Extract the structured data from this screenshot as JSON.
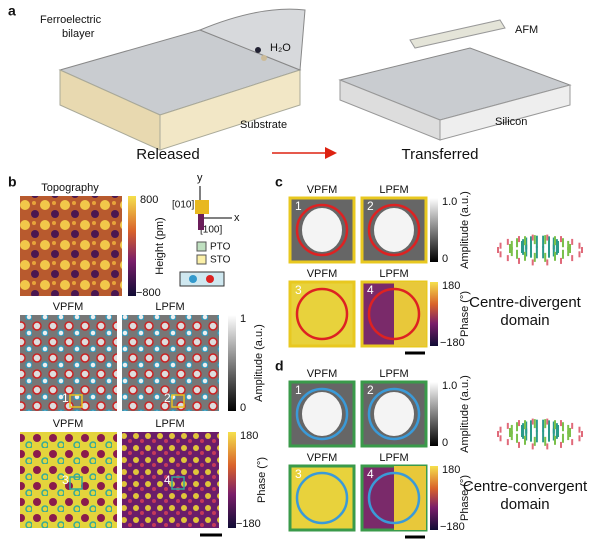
{
  "panel_a": {
    "label": "a",
    "film_label": [
      "Ferroelectric",
      "bilayer"
    ],
    "water": "H₂O",
    "afm": "AFM",
    "substrate": "Substrate",
    "silicon": "Silicon",
    "released": "Released",
    "transferred": "Transferred"
  },
  "panel_b": {
    "label": "b",
    "topography": "Topography",
    "height_ticks": [
      "800",
      "−800"
    ],
    "height_axis": "Height (pm)",
    "axis_y": "y",
    "axis_x": "x",
    "dir_y": "[010]",
    "dir_x": "[100]",
    "legend": [
      "PTO",
      "STO"
    ],
    "map_titles": [
      "VPFM",
      "LPFM",
      "VPFM",
      "LPFM"
    ],
    "amp_ticks": [
      "1",
      "0"
    ],
    "amp_axis": "Amplitude (a.u.)",
    "phase_ticks": [
      "180",
      "−180"
    ],
    "phase_axis": "Phase (°)",
    "markers": [
      "1",
      "2",
      "3",
      "4"
    ]
  },
  "panel_c": {
    "label": "c",
    "titles": [
      "VPFM",
      "LPFM",
      "VPFM",
      "LPFM"
    ],
    "numbers": [
      "1",
      "2",
      "3",
      "4"
    ],
    "amp_ticks": [
      "1.0",
      "0"
    ],
    "amp_axis": "Amplitude (a.u.)",
    "phase_ticks": [
      "180",
      "−180"
    ],
    "phase_axis": "Phase (°)",
    "caption": [
      "Centre-divergent",
      "domain"
    ]
  },
  "panel_d": {
    "label": "d",
    "titles": [
      "VPFM",
      "LPFM",
      "VPFM",
      "LPFM"
    ],
    "numbers": [
      "1",
      "2",
      "3",
      "4"
    ],
    "amp_ticks": [
      "1.0",
      "0"
    ],
    "amp_axis": "Amplitude (a.u.)",
    "phase_ticks": [
      "180",
      "−180"
    ],
    "phase_axis": "Phase (°)",
    "caption": [
      "Centre-convergent",
      "domain"
    ]
  }
}
